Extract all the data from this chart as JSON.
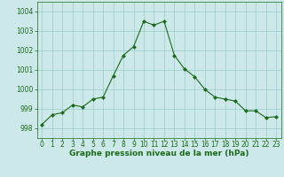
{
  "x": [
    0,
    1,
    2,
    3,
    4,
    5,
    6,
    7,
    8,
    9,
    10,
    11,
    12,
    13,
    14,
    15,
    16,
    17,
    18,
    19,
    20,
    21,
    22,
    23
  ],
  "y": [
    998.2,
    998.7,
    998.8,
    999.2,
    999.1,
    999.5,
    999.6,
    1000.7,
    1001.75,
    1002.2,
    1003.5,
    1003.3,
    1003.5,
    1001.75,
    1001.05,
    1000.65,
    1000.0,
    999.6,
    999.5,
    999.4,
    998.9,
    998.9,
    998.55,
    998.6
  ],
  "line_color": "#1a6b1a",
  "marker": "D",
  "marker_size": 2.0,
  "bg_color": "#cce8e8",
  "grid_color": "#99cccc",
  "title": "Graphe pression niveau de la mer (hPa)",
  "title_fontsize": 6.5,
  "tick_fontsize": 5.5,
  "ylim": [
    997.5,
    1004.5
  ],
  "yticks": [
    998,
    999,
    1000,
    1001,
    1002,
    1003,
    1004
  ],
  "xlim": [
    -0.5,
    23.5
  ],
  "xticks": [
    0,
    1,
    2,
    3,
    4,
    5,
    6,
    7,
    8,
    9,
    10,
    11,
    12,
    13,
    14,
    15,
    16,
    17,
    18,
    19,
    20,
    21,
    22,
    23
  ]
}
